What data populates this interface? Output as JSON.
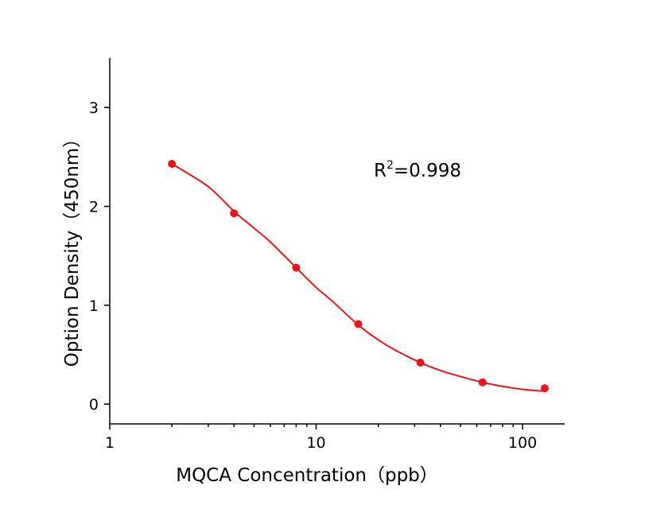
{
  "chart_data": {
    "type": "scatter",
    "xlabel": "MQCA  Concentration（ppb）",
    "ylabel": "Option Density（450nm）",
    "x_scale": "log",
    "xlim": [
      1,
      160
    ],
    "ylim": [
      -0.2,
      3.5
    ],
    "x_ticks": [
      1,
      10,
      100
    ],
    "x_tick_labels": [
      "1",
      "10",
      "100"
    ],
    "y_ticks": [
      0,
      1,
      2,
      3
    ],
    "y_tick_labels": [
      "0",
      "1",
      "2",
      "3"
    ],
    "grid": false,
    "series": [
      {
        "type": "scatter",
        "x": [
          2,
          4,
          8,
          16,
          32,
          64,
          128
        ],
        "y": [
          2.43,
          1.93,
          1.38,
          0.81,
          0.42,
          0.22,
          0.16
        ],
        "color": "#e8161b"
      }
    ],
    "fit_curve": {
      "color": "#e8161b",
      "x": [
        2,
        3,
        4,
        5,
        6,
        8,
        10,
        12,
        16,
        20,
        24,
        32,
        40,
        48,
        64,
        80,
        100,
        128
      ],
      "y": [
        2.43,
        2.2,
        1.95,
        1.78,
        1.64,
        1.38,
        1.18,
        1.04,
        0.8,
        0.65,
        0.55,
        0.42,
        0.34,
        0.29,
        0.22,
        0.18,
        0.15,
        0.13
      ]
    },
    "annotations": [
      {
        "base": "R",
        "superscript": "2",
        "suffix": "=0.998"
      }
    ]
  }
}
